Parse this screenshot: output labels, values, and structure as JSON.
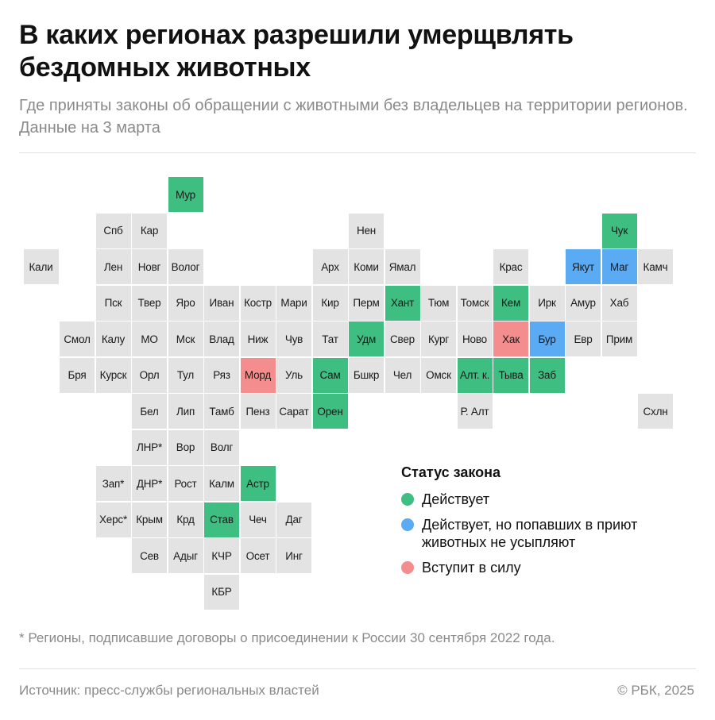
{
  "header": {
    "title": "В каких регионах разрешили умерщвлять бездомных животных",
    "subtitle": "Где приняты законы об обращении с животными без владельцев на территории регионов. Данные на 3 марта"
  },
  "colors": {
    "none": "#e3e3e3",
    "active": "#3ebe80",
    "active_no_euth": "#5aaaf4",
    "pending": "#f48d8d"
  },
  "map": {
    "regions": [
      {
        "label": "Мур",
        "row": 0,
        "col": 5,
        "status": "active"
      },
      {
        "label": "Спб",
        "row": 1,
        "col": 3,
        "status": "none"
      },
      {
        "label": "Кар",
        "row": 1,
        "col": 4,
        "status": "none"
      },
      {
        "label": "Нен",
        "row": 1,
        "col": 10,
        "status": "none"
      },
      {
        "label": "Чук",
        "row": 1,
        "col": 17,
        "status": "active"
      },
      {
        "label": "Кали",
        "row": 2,
        "col": 1,
        "status": "none"
      },
      {
        "label": "Лен",
        "row": 2,
        "col": 3,
        "status": "none"
      },
      {
        "label": "Новг",
        "row": 2,
        "col": 4,
        "status": "none"
      },
      {
        "label": "Волог",
        "row": 2,
        "col": 5,
        "status": "none"
      },
      {
        "label": "Арх",
        "row": 2,
        "col": 9,
        "status": "none"
      },
      {
        "label": "Коми",
        "row": 2,
        "col": 10,
        "status": "none"
      },
      {
        "label": "Ямал",
        "row": 2,
        "col": 11,
        "status": "none"
      },
      {
        "label": "Крас",
        "row": 2,
        "col": 14,
        "status": "none"
      },
      {
        "label": "Якут",
        "row": 2,
        "col": 16,
        "status": "active_no_euth"
      },
      {
        "label": "Маг",
        "row": 2,
        "col": 17,
        "status": "active_no_euth"
      },
      {
        "label": "Камч",
        "row": 2,
        "col": 18,
        "status": "none"
      },
      {
        "label": "Пск",
        "row": 3,
        "col": 3,
        "status": "none"
      },
      {
        "label": "Твер",
        "row": 3,
        "col": 4,
        "status": "none"
      },
      {
        "label": "Яро",
        "row": 3,
        "col": 5,
        "status": "none"
      },
      {
        "label": "Иван",
        "row": 3,
        "col": 6,
        "status": "none"
      },
      {
        "label": "Костр",
        "row": 3,
        "col": 7,
        "status": "none"
      },
      {
        "label": "Мари",
        "row": 3,
        "col": 8,
        "status": "none"
      },
      {
        "label": "Кир",
        "row": 3,
        "col": 9,
        "status": "none"
      },
      {
        "label": "Перм",
        "row": 3,
        "col": 10,
        "status": "none"
      },
      {
        "label": "Хант",
        "row": 3,
        "col": 11,
        "status": "active"
      },
      {
        "label": "Тюм",
        "row": 3,
        "col": 12,
        "status": "none"
      },
      {
        "label": "Томск",
        "row": 3,
        "col": 13,
        "status": "none"
      },
      {
        "label": "Кем",
        "row": 3,
        "col": 14,
        "status": "active"
      },
      {
        "label": "Ирк",
        "row": 3,
        "col": 15,
        "status": "none"
      },
      {
        "label": "Амур",
        "row": 3,
        "col": 16,
        "status": "none"
      },
      {
        "label": "Хаб",
        "row": 3,
        "col": 17,
        "status": "none"
      },
      {
        "label": "Смол",
        "row": 4,
        "col": 2,
        "status": "none"
      },
      {
        "label": "Калу",
        "row": 4,
        "col": 3,
        "status": "none"
      },
      {
        "label": "МО",
        "row": 4,
        "col": 4,
        "status": "none"
      },
      {
        "label": "Мск",
        "row": 4,
        "col": 5,
        "status": "none"
      },
      {
        "label": "Влад",
        "row": 4,
        "col": 6,
        "status": "none"
      },
      {
        "label": "Ниж",
        "row": 4,
        "col": 7,
        "status": "none"
      },
      {
        "label": "Чув",
        "row": 4,
        "col": 8,
        "status": "none"
      },
      {
        "label": "Тат",
        "row": 4,
        "col": 9,
        "status": "none"
      },
      {
        "label": "Удм",
        "row": 4,
        "col": 10,
        "status": "active"
      },
      {
        "label": "Свер",
        "row": 4,
        "col": 11,
        "status": "none"
      },
      {
        "label": "Кург",
        "row": 4,
        "col": 12,
        "status": "none"
      },
      {
        "label": "Ново",
        "row": 4,
        "col": 13,
        "status": "none"
      },
      {
        "label": "Хак",
        "row": 4,
        "col": 14,
        "status": "pending"
      },
      {
        "label": "Бур",
        "row": 4,
        "col": 15,
        "status": "active_no_euth"
      },
      {
        "label": "Евр",
        "row": 4,
        "col": 16,
        "status": "none"
      },
      {
        "label": "Прим",
        "row": 4,
        "col": 17,
        "status": "none"
      },
      {
        "label": "Бря",
        "row": 5,
        "col": 2,
        "status": "none"
      },
      {
        "label": "Курск",
        "row": 5,
        "col": 3,
        "status": "none"
      },
      {
        "label": "Орл",
        "row": 5,
        "col": 4,
        "status": "none"
      },
      {
        "label": "Тул",
        "row": 5,
        "col": 5,
        "status": "none"
      },
      {
        "label": "Ряз",
        "row": 5,
        "col": 6,
        "status": "none"
      },
      {
        "label": "Морд",
        "row": 5,
        "col": 7,
        "status": "pending"
      },
      {
        "label": "Уль",
        "row": 5,
        "col": 8,
        "status": "none"
      },
      {
        "label": "Сам",
        "row": 5,
        "col": 9,
        "status": "active"
      },
      {
        "label": "Бшкр",
        "row": 5,
        "col": 10,
        "status": "none"
      },
      {
        "label": "Чел",
        "row": 5,
        "col": 11,
        "status": "none"
      },
      {
        "label": "Омск",
        "row": 5,
        "col": 12,
        "status": "none"
      },
      {
        "label": "Алт. к.",
        "row": 5,
        "col": 13,
        "status": "active"
      },
      {
        "label": "Тыва",
        "row": 5,
        "col": 14,
        "status": "active"
      },
      {
        "label": "Заб",
        "row": 5,
        "col": 15,
        "status": "active"
      },
      {
        "label": "Бел",
        "row": 6,
        "col": 4,
        "status": "none"
      },
      {
        "label": "Лип",
        "row": 6,
        "col": 5,
        "status": "none"
      },
      {
        "label": "Тамб",
        "row": 6,
        "col": 6,
        "status": "none"
      },
      {
        "label": "Пенз",
        "row": 6,
        "col": 7,
        "status": "none"
      },
      {
        "label": "Сарат",
        "row": 6,
        "col": 8,
        "status": "none"
      },
      {
        "label": "Орен",
        "row": 6,
        "col": 9,
        "status": "active"
      },
      {
        "label": "Р. Алт",
        "row": 6,
        "col": 13,
        "status": "none"
      },
      {
        "label": "Схлн",
        "row": 6,
        "col": 18,
        "status": "none"
      },
      {
        "label": "ЛНР*",
        "row": 7,
        "col": 4,
        "status": "none"
      },
      {
        "label": "Вор",
        "row": 7,
        "col": 5,
        "status": "none"
      },
      {
        "label": "Волг",
        "row": 7,
        "col": 6,
        "status": "none"
      },
      {
        "label": "Зап*",
        "row": 8,
        "col": 3,
        "status": "none"
      },
      {
        "label": "ДНР*",
        "row": 8,
        "col": 4,
        "status": "none"
      },
      {
        "label": "Рост",
        "row": 8,
        "col": 5,
        "status": "none"
      },
      {
        "label": "Калм",
        "row": 8,
        "col": 6,
        "status": "none"
      },
      {
        "label": "Астр",
        "row": 8,
        "col": 7,
        "status": "active"
      },
      {
        "label": "Херс*",
        "row": 9,
        "col": 3,
        "status": "none"
      },
      {
        "label": "Крым",
        "row": 9,
        "col": 4,
        "status": "none"
      },
      {
        "label": "Крд",
        "row": 9,
        "col": 5,
        "status": "none"
      },
      {
        "label": "Став",
        "row": 9,
        "col": 6,
        "status": "active"
      },
      {
        "label": "Чеч",
        "row": 9,
        "col": 7,
        "status": "none"
      },
      {
        "label": "Даг",
        "row": 9,
        "col": 8,
        "status": "none"
      },
      {
        "label": "Сев",
        "row": 10,
        "col": 4,
        "status": "none"
      },
      {
        "label": "Адыг",
        "row": 10,
        "col": 5,
        "status": "none"
      },
      {
        "label": "КЧР",
        "row": 10,
        "col": 6,
        "status": "none"
      },
      {
        "label": "Осет",
        "row": 10,
        "col": 7,
        "status": "none"
      },
      {
        "label": "Инг",
        "row": 10,
        "col": 8,
        "status": "none"
      },
      {
        "label": "КБР",
        "row": 11,
        "col": 6,
        "status": "none"
      }
    ]
  },
  "legend": {
    "title": "Статус закона",
    "items": [
      {
        "label": "Действует",
        "status": "active"
      },
      {
        "label": "Действует, но попавших в приют животных не усыпляют",
        "status": "active_no_euth"
      },
      {
        "label": "Вступит в силу",
        "status": "pending"
      }
    ]
  },
  "footer": {
    "footnote": "* Регионы, подписавшие договоры о присоединении к России 30 сентября 2022 года.",
    "source": "Источник: пресс-службы региональных властей",
    "copyright": "© РБК, 2025"
  }
}
